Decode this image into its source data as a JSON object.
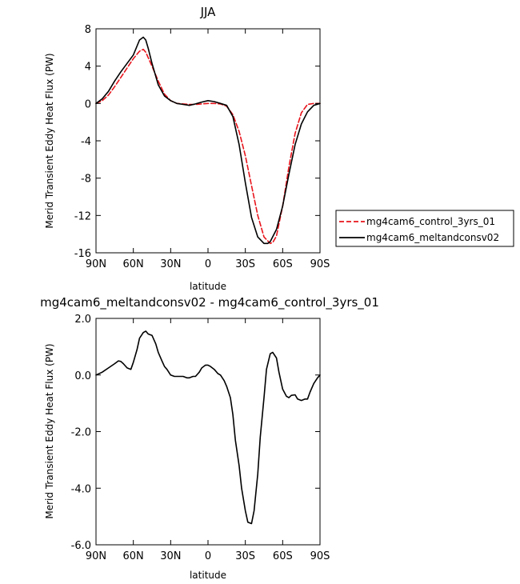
{
  "chart_data": [
    {
      "type": "line",
      "title": "JJA",
      "xlabel": "latitude",
      "ylabel": "Merid Transient Eddy Heat Flux (PW)",
      "x_ticks": [
        "90N",
        "60N",
        "30N",
        "0",
        "30S",
        "60S",
        "90S"
      ],
      "x_tick_values": [
        90,
        60,
        30,
        0,
        -30,
        -60,
        -90
      ],
      "xlim": [
        90,
        -90
      ],
      "y_ticks": [
        "8",
        "4",
        "0",
        "-4",
        "-8",
        "-12",
        "-16"
      ],
      "y_tick_values": [
        8,
        4,
        0,
        -4,
        -8,
        -12,
        -16
      ],
      "ylim": [
        -16,
        8
      ],
      "grid": false,
      "legend_position": "right",
      "series": [
        {
          "name": "mg4cam6_control_3yrs_01",
          "color": "#e8141c",
          "style": "dashed",
          "x": [
            90,
            85,
            80,
            75,
            70,
            65,
            60,
            55,
            52,
            50,
            45,
            40,
            35,
            30,
            25,
            20,
            15,
            10,
            5,
            0,
            -5,
            -10,
            -15,
            -20,
            -25,
            -30,
            -35,
            -40,
            -45,
            -50,
            -52,
            -55,
            -60,
            -65,
            -70,
            -75,
            -80,
            -85,
            -90
          ],
          "y": [
            0,
            0.3,
            0.9,
            1.8,
            2.8,
            3.8,
            4.8,
            5.6,
            5.8,
            5.5,
            4.0,
            2.4,
            1.0,
            0.3,
            0,
            -0.05,
            -0.1,
            -0.1,
            -0.05,
            0,
            0,
            -0.05,
            -0.3,
            -1.2,
            -3.0,
            -5.6,
            -8.8,
            -12.0,
            -14.3,
            -15.0,
            -14.9,
            -14.2,
            -11.0,
            -6.8,
            -3.2,
            -1.0,
            -0.1,
            0,
            0
          ]
        },
        {
          "name": "mg4cam6_meltandconsv02",
          "color": "#000000",
          "style": "solid",
          "x": [
            90,
            85,
            80,
            75,
            70,
            65,
            60,
            55,
            52,
            50,
            48,
            45,
            40,
            35,
            30,
            25,
            20,
            15,
            10,
            5,
            0,
            -5,
            -10,
            -15,
            -20,
            -25,
            -30,
            -35,
            -40,
            -45,
            -48,
            -50,
            -55,
            -60,
            -65,
            -70,
            -75,
            -80,
            -85,
            -90
          ],
          "y": [
            0,
            0.5,
            1.3,
            2.4,
            3.4,
            4.3,
            5.2,
            6.8,
            7.1,
            6.8,
            5.9,
            4.3,
            2.0,
            0.8,
            0.3,
            0,
            -0.1,
            -0.2,
            -0.05,
            0.15,
            0.3,
            0.2,
            0,
            -0.2,
            -1.4,
            -4.4,
            -8.5,
            -12.2,
            -14.3,
            -15.0,
            -15.0,
            -14.8,
            -13.5,
            -11.0,
            -7.6,
            -4.4,
            -2.2,
            -0.9,
            -0.2,
            0
          ]
        }
      ]
    },
    {
      "type": "line",
      "title": "mg4cam6_meltandconsv02 - mg4cam6_control_3yrs_01",
      "xlabel": "latitude",
      "ylabel": "Merid Transient Eddy Heat Flux (PW)",
      "x_ticks": [
        "90N",
        "60N",
        "30N",
        "0",
        "30S",
        "60S",
        "90S"
      ],
      "x_tick_values": [
        90,
        60,
        30,
        0,
        -30,
        -60,
        -90
      ],
      "xlim": [
        90,
        -90
      ],
      "y_ticks": [
        "2.0",
        "0.0",
        "-2.0",
        "-4.0",
        "-6.0"
      ],
      "y_tick_values": [
        2,
        0,
        -2,
        -4,
        -6
      ],
      "ylim": [
        -6,
        2
      ],
      "grid": false,
      "series": [
        {
          "color": "#000000",
          "style": "solid",
          "x": [
            90,
            85,
            80,
            75,
            72,
            70,
            68,
            65,
            62,
            60,
            57,
            55,
            52,
            50,
            48,
            45,
            42,
            40,
            37,
            35,
            33,
            30,
            27,
            25,
            22,
            20,
            17,
            15,
            12,
            10,
            7,
            5,
            2,
            0,
            -2,
            -5,
            -8,
            -10,
            -13,
            -15,
            -18,
            -20,
            -22,
            -25,
            -27,
            -30,
            -32,
            -35,
            -37,
            -40,
            -42,
            -45,
            -47,
            -50,
            -52,
            -55,
            -57,
            -60,
            -63,
            -65,
            -67,
            -70,
            -72,
            -75,
            -78,
            -80,
            -82,
            -85,
            -88,
            -90
          ],
          "y": [
            0,
            0.1,
            0.25,
            0.4,
            0.5,
            0.48,
            0.4,
            0.25,
            0.2,
            0.45,
            0.9,
            1.3,
            1.5,
            1.55,
            1.45,
            1.4,
            1.1,
            0.8,
            0.5,
            0.3,
            0.2,
            0,
            -0.05,
            -0.05,
            -0.05,
            -0.05,
            -0.1,
            -0.1,
            -0.05,
            -0.05,
            0.1,
            0.25,
            0.35,
            0.35,
            0.3,
            0.2,
            0.05,
            0,
            -0.2,
            -0.4,
            -0.8,
            -1.4,
            -2.3,
            -3.2,
            -4.0,
            -4.8,
            -5.2,
            -5.25,
            -4.8,
            -3.5,
            -2.2,
            -0.8,
            0.2,
            0.75,
            0.8,
            0.6,
            0.1,
            -0.5,
            -0.75,
            -0.8,
            -0.72,
            -0.7,
            -0.85,
            -0.9,
            -0.85,
            -0.85,
            -0.6,
            -0.3,
            -0.1,
            0
          ]
        }
      ]
    }
  ]
}
